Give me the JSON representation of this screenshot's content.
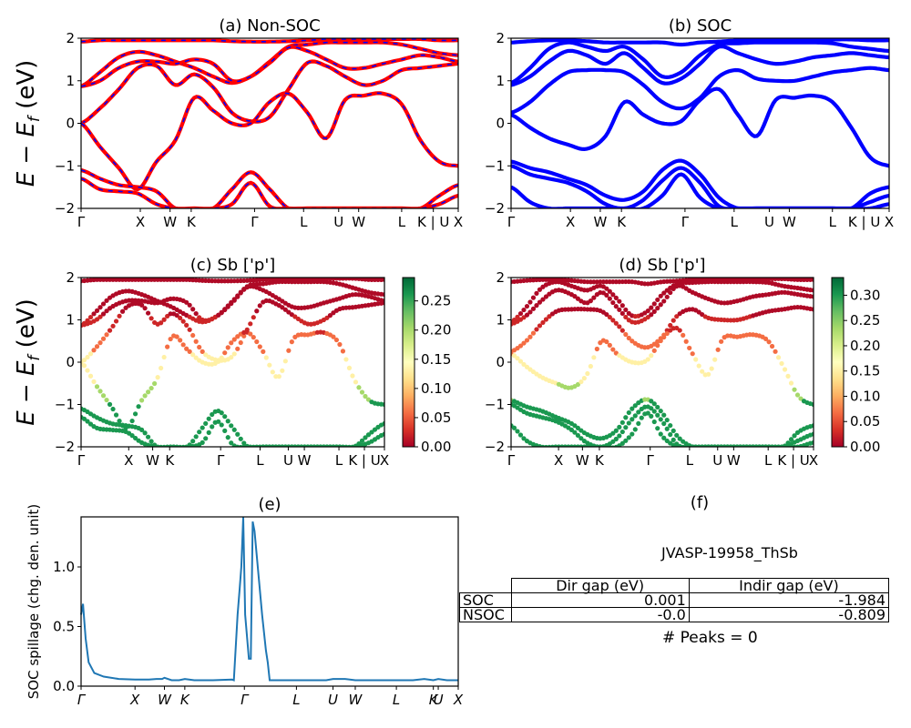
{
  "chart_data": [
    {
      "panel": "a",
      "type": "line",
      "title": "(a) Non-SOC",
      "ylabel": "E − E_f (eV)",
      "ylim": [
        -2,
        2
      ],
      "yticks": [
        "−2",
        "−1",
        "0",
        "1",
        "2"
      ],
      "kpoints": [
        "Γ",
        "X",
        "W",
        "K",
        "Γ",
        "L",
        "U",
        "W",
        "L",
        "K | U",
        "X"
      ],
      "kpos": [
        0,
        0.157,
        0.236,
        0.292,
        0.46,
        0.59,
        0.683,
        0.736,
        0.85,
        0.934,
        1.0
      ],
      "line_style": "red solid with blue dashes",
      "bands": [
        [
          1.92,
          1.95,
          1.95,
          1.95,
          1.95,
          1.95,
          1.95,
          1.95,
          1.93,
          1.92,
          1.92,
          1.93,
          1.95,
          1.98,
          1.98,
          1.98,
          1.98,
          1.98,
          1.98,
          1.95,
          1.95
        ],
        [
          0.87,
          1.2,
          1.55,
          1.68,
          1.6,
          1.45,
          1.3,
          1.1,
          0.95,
          1.1,
          1.45,
          1.8,
          1.85,
          1.9,
          1.9,
          1.9,
          1.9,
          1.85,
          1.75,
          1.65,
          1.6
        ],
        [
          0.87,
          1.0,
          1.3,
          1.45,
          1.45,
          1.4,
          1.5,
          1.4,
          1.0,
          1.1,
          1.42,
          1.78,
          1.7,
          1.5,
          1.3,
          1.3,
          1.4,
          1.5,
          1.6,
          1.55,
          1.45
        ],
        [
          0.0,
          0.35,
          0.8,
          1.3,
          1.35,
          0.9,
          1.15,
          0.85,
          0.25,
          0.05,
          0.15,
          0.8,
          1.42,
          1.35,
          1.1,
          0.9,
          1.0,
          1.25,
          1.3,
          1.35,
          1.4
        ],
        [
          0.0,
          -0.55,
          -1.05,
          -1.55,
          -0.9,
          -0.4,
          0.6,
          0.3,
          0.0,
          0.0,
          0.5,
          0.7,
          0.25,
          -0.35,
          0.55,
          0.65,
          0.7,
          0.45,
          -0.4,
          -0.9,
          -1.0
        ],
        [
          -1.1,
          -1.3,
          -1.45,
          -1.5,
          -1.6,
          -2.0,
          -2.0,
          -2.0,
          -1.55,
          -1.15,
          -1.55,
          -2.0,
          -2.0,
          -2.0,
          -2.0,
          -2.0,
          -2.0,
          -2.0,
          -2.0,
          -1.7,
          -1.45
        ],
        [
          -1.3,
          -1.55,
          -1.6,
          -1.65,
          -1.9,
          -2.0,
          -2.0,
          -2.0,
          -1.9,
          -1.4,
          -1.95,
          -2.0,
          -2.0,
          -2.0,
          -2.0,
          -2.0,
          -2.0,
          -2.0,
          -2.0,
          -1.9,
          -1.7
        ]
      ]
    },
    {
      "panel": "b",
      "type": "line",
      "title": "(b) SOC",
      "ylim": [
        -2,
        2
      ],
      "yticks": [
        "−2",
        "−1",
        "0",
        "1",
        "2"
      ],
      "kpoints": [
        "Γ",
        "X",
        "W",
        "K",
        "Γ",
        "L",
        "U",
        "W",
        "L",
        "K | U",
        "X"
      ],
      "kpos": [
        0,
        0.157,
        0.236,
        0.292,
        0.46,
        0.59,
        0.683,
        0.736,
        0.85,
        0.934,
        1.0
      ],
      "line_style": "blue solid",
      "bands": [
        [
          1.9,
          1.93,
          1.95,
          1.95,
          1.93,
          1.9,
          1.9,
          1.9,
          1.9,
          1.85,
          1.9,
          1.92,
          1.95,
          1.97,
          1.97,
          1.97,
          1.97,
          1.97,
          1.97,
          1.95,
          1.95
        ],
        [
          0.95,
          1.3,
          1.75,
          1.9,
          1.8,
          1.7,
          1.8,
          1.5,
          1.1,
          1.2,
          1.6,
          1.85,
          1.88,
          1.9,
          1.9,
          1.9,
          1.9,
          1.88,
          1.8,
          1.75,
          1.7
        ],
        [
          0.9,
          1.1,
          1.45,
          1.7,
          1.6,
          1.4,
          1.65,
          1.3,
          0.95,
          1.05,
          1.4,
          1.8,
          1.65,
          1.5,
          1.4,
          1.45,
          1.55,
          1.6,
          1.65,
          1.6,
          1.55
        ],
        [
          0.25,
          0.5,
          0.9,
          1.2,
          1.25,
          1.25,
          1.2,
          0.9,
          0.5,
          0.35,
          0.6,
          1.1,
          1.25,
          1.05,
          1.0,
          1.0,
          1.1,
          1.2,
          1.25,
          1.3,
          1.25
        ],
        [
          0.2,
          -0.1,
          -0.35,
          -0.5,
          -0.6,
          -0.3,
          0.5,
          0.2,
          0.0,
          0.05,
          0.55,
          0.8,
          0.2,
          -0.3,
          0.55,
          0.6,
          0.65,
          0.5,
          -0.1,
          -0.8,
          -1.0
        ],
        [
          -0.9,
          -1.05,
          -1.15,
          -1.3,
          -1.45,
          -1.7,
          -1.8,
          -1.6,
          -1.1,
          -0.88,
          -1.2,
          -1.75,
          -2.0,
          -2.0,
          -2.0,
          -2.0,
          -2.0,
          -2.0,
          -2.0,
          -1.65,
          -1.5
        ],
        [
          -1.0,
          -1.2,
          -1.3,
          -1.4,
          -1.6,
          -1.9,
          -2.0,
          -1.8,
          -1.35,
          -1.05,
          -1.4,
          -1.95,
          -2.0,
          -2.0,
          -2.0,
          -2.0,
          -2.0,
          -2.0,
          -2.0,
          -1.85,
          -1.7
        ],
        [
          -1.5,
          -1.85,
          -2.0,
          -2.0,
          -2.0,
          -2.0,
          -2.0,
          -2.0,
          -1.7,
          -1.2,
          -1.75,
          -2.0,
          -2.0,
          -2.0,
          -2.0,
          -2.0,
          -2.0,
          -2.0,
          -2.0,
          -2.0,
          -1.9
        ]
      ]
    },
    {
      "panel": "c",
      "type": "scatter",
      "title": "(c)  Sb ['p']",
      "ylabel": "E − E_f (eV)",
      "ylim": [
        -2,
        2
      ],
      "yticks": [
        "−2",
        "−1",
        "0",
        "1",
        "2"
      ],
      "kpoints": [
        "Γ",
        "X",
        "W",
        "K",
        "Γ",
        "L",
        "U",
        "W",
        "L",
        "K | U",
        "X"
      ],
      "kpos": [
        0,
        0.157,
        0.236,
        0.292,
        0.46,
        0.59,
        0.683,
        0.736,
        0.85,
        0.934,
        1.0
      ],
      "colorbar": {
        "ticks": [
          "0.00",
          "0.05",
          "0.10",
          "0.15",
          "0.20",
          "0.25"
        ],
        "max": 0.29
      },
      "bands_ref": "a"
    },
    {
      "panel": "d",
      "type": "scatter",
      "title": "(d) Sb ['p']",
      "ylim": [
        -2,
        2
      ],
      "yticks": [
        "−2",
        "−1",
        "0",
        "1",
        "2"
      ],
      "kpoints": [
        "Γ",
        "X",
        "W",
        "K",
        "Γ",
        "L",
        "U",
        "W",
        "L",
        "K | U",
        "X"
      ],
      "kpos": [
        0,
        0.157,
        0.236,
        0.292,
        0.46,
        0.59,
        0.683,
        0.736,
        0.85,
        0.934,
        1.0
      ],
      "colorbar": {
        "ticks": [
          "0.00",
          "0.05",
          "0.10",
          "0.15",
          "0.20",
          "0.25",
          "0.30"
        ],
        "max": 0.335
      },
      "bands_ref": "b"
    },
    {
      "panel": "e",
      "type": "line",
      "title": "(e)",
      "ylabel": "SOC spillage (chg. den. unit)",
      "ylim": [
        0,
        1.42
      ],
      "yticks": [
        "0.0",
        "0.5",
        "1.0"
      ],
      "xticks": [
        "Γ",
        "X",
        "W",
        "K",
        "Γ",
        "L",
        "U",
        "W",
        "L",
        "K",
        "U",
        "X"
      ],
      "xtick_pos": [
        0,
        0.143,
        0.221,
        0.275,
        0.433,
        0.571,
        0.668,
        0.727,
        0.836,
        0.934,
        0.947,
        1.0
      ],
      "x": [
        0,
        0.005,
        0.012,
        0.02,
        0.035,
        0.06,
        0.1,
        0.143,
        0.18,
        0.2,
        0.215,
        0.221,
        0.24,
        0.26,
        0.275,
        0.3,
        0.35,
        0.4,
        0.405,
        0.415,
        0.42,
        0.425,
        0.43,
        0.435,
        0.445,
        0.45,
        0.455,
        0.46,
        0.48,
        0.49,
        0.495,
        0.5,
        0.52,
        0.571,
        0.62,
        0.65,
        0.668,
        0.7,
        0.727,
        0.78,
        0.836,
        0.88,
        0.91,
        0.934,
        0.947,
        0.97,
        1.0
      ],
      "y": [
        0.6,
        0.69,
        0.4,
        0.2,
        0.11,
        0.08,
        0.06,
        0.055,
        0.055,
        0.06,
        0.06,
        0.07,
        0.05,
        0.05,
        0.06,
        0.05,
        0.05,
        0.055,
        0.05,
        0.6,
        0.8,
        1.0,
        1.42,
        0.6,
        0.23,
        0.23,
        1.38,
        1.3,
        0.6,
        0.3,
        0.2,
        0.05,
        0.05,
        0.05,
        0.05,
        0.05,
        0.06,
        0.06,
        0.05,
        0.05,
        0.05,
        0.05,
        0.06,
        0.05,
        0.06,
        0.05,
        0.05
      ]
    }
  ],
  "panel_f": {
    "title": "(f)",
    "system": "JVASP-19958_ThSb",
    "columns": [
      "Dir gap (eV)",
      "Indir gap (eV)"
    ],
    "rows": [
      {
        "label": "SOC",
        "dir": "0.001",
        "indir": "-1.984"
      },
      {
        "label": "NSOC",
        "dir": "-0.0",
        "indir": "-0.809"
      }
    ],
    "peaks": "# Peaks = 0"
  }
}
